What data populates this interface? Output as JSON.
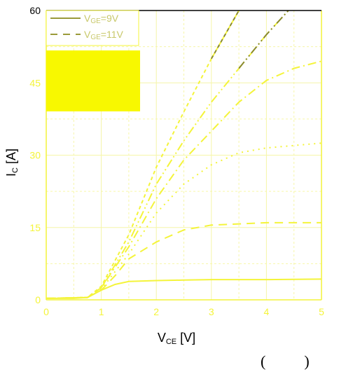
{
  "colors": {
    "background": "#ffffff",
    "axis_yellow": "#f4f43a",
    "grid": "#f6f6a8",
    "legend_olive": "#9a9a3a",
    "curve_olive": "#8a8a2e",
    "curve_yellow": "#f4f43a",
    "legend_patch": "#f8f800",
    "top_tick": "#000000"
  },
  "caption": "(          )",
  "chart_data": {
    "type": "line",
    "title": "",
    "xlabel": "V_CE [V]",
    "xlabel_main": "V",
    "xlabel_sub": "CE",
    "xlabel_unit": " [V]",
    "ylabel": "I_C [A]",
    "ylabel_main": "I",
    "ylabel_sub": "C",
    "ylabel_unit": " [A]",
    "xlim": [
      0,
      5
    ],
    "ylim": [
      0,
      60
    ],
    "xticks": [
      "0",
      "1",
      "2",
      "3",
      "4",
      "5"
    ],
    "yticks": [
      "0",
      "15",
      "30",
      "45",
      "60"
    ],
    "grid": true,
    "legend_position": "top-left",
    "legend": [
      {
        "main": "V",
        "sub": "GE",
        "tail": "=9V",
        "dash": "solid"
      },
      {
        "main": "V",
        "sub": "GE",
        "tail": "=11V",
        "dash": "dashed"
      }
    ],
    "series": [
      {
        "dash": "solid",
        "points": [
          [
            0,
            0.3
          ],
          [
            0.5,
            0.3
          ],
          [
            0.75,
            0.5
          ],
          [
            1.0,
            2.0
          ],
          [
            1.25,
            3.2
          ],
          [
            1.5,
            3.8
          ],
          [
            2.0,
            4.0
          ],
          [
            2.5,
            4.1
          ],
          [
            3.0,
            4.2
          ],
          [
            4.0,
            4.2
          ],
          [
            5.0,
            4.3
          ]
        ]
      },
      {
        "dash": "dashed",
        "points": [
          [
            0,
            0.3
          ],
          [
            0.75,
            0.5
          ],
          [
            1.0,
            2.0
          ],
          [
            1.25,
            5.0
          ],
          [
            1.5,
            8.5
          ],
          [
            2.0,
            12.0
          ],
          [
            2.5,
            14.5
          ],
          [
            3.0,
            15.5
          ],
          [
            4.0,
            16.0
          ],
          [
            5.0,
            16.0
          ]
        ]
      },
      {
        "dash": "dotted",
        "points": [
          [
            0,
            0.3
          ],
          [
            0.75,
            0.5
          ],
          [
            1.0,
            2.2
          ],
          [
            1.5,
            9.5
          ],
          [
            2.0,
            18.0
          ],
          [
            2.5,
            24.0
          ],
          [
            3.0,
            28.0
          ],
          [
            3.5,
            30.5
          ],
          [
            4.0,
            31.5
          ],
          [
            4.5,
            32.0
          ],
          [
            5.0,
            32.5
          ]
        ]
      },
      {
        "dash": "dashdot",
        "points": [
          [
            0,
            0.3
          ],
          [
            0.75,
            0.5
          ],
          [
            1.0,
            2.5
          ],
          [
            1.5,
            11.0
          ],
          [
            2.0,
            21.0
          ],
          [
            2.5,
            29.0
          ],
          [
            3.0,
            35.0
          ],
          [
            3.5,
            41.0
          ],
          [
            4.0,
            45.5
          ],
          [
            4.5,
            48.0
          ],
          [
            5.0,
            49.5
          ]
        ]
      },
      {
        "dash": "dashdotdot",
        "points": [
          [
            0,
            0.3
          ],
          [
            0.75,
            0.5
          ],
          [
            1.0,
            2.5
          ],
          [
            1.5,
            12.0
          ],
          [
            2.0,
            24.0
          ],
          [
            2.5,
            33.0
          ],
          [
            3.0,
            41.0
          ],
          [
            3.5,
            48.0
          ],
          [
            4.0,
            55.0
          ],
          [
            4.4,
            60.0
          ]
        ]
      },
      {
        "dash": "shortdash",
        "points": [
          [
            0,
            0.3
          ],
          [
            0.75,
            0.5
          ],
          [
            1.0,
            2.8
          ],
          [
            1.5,
            13.5
          ],
          [
            2.0,
            27.5
          ],
          [
            2.5,
            39.0
          ],
          [
            3.0,
            50.0
          ],
          [
            3.3,
            56.0
          ],
          [
            3.5,
            60.0
          ]
        ]
      }
    ]
  }
}
